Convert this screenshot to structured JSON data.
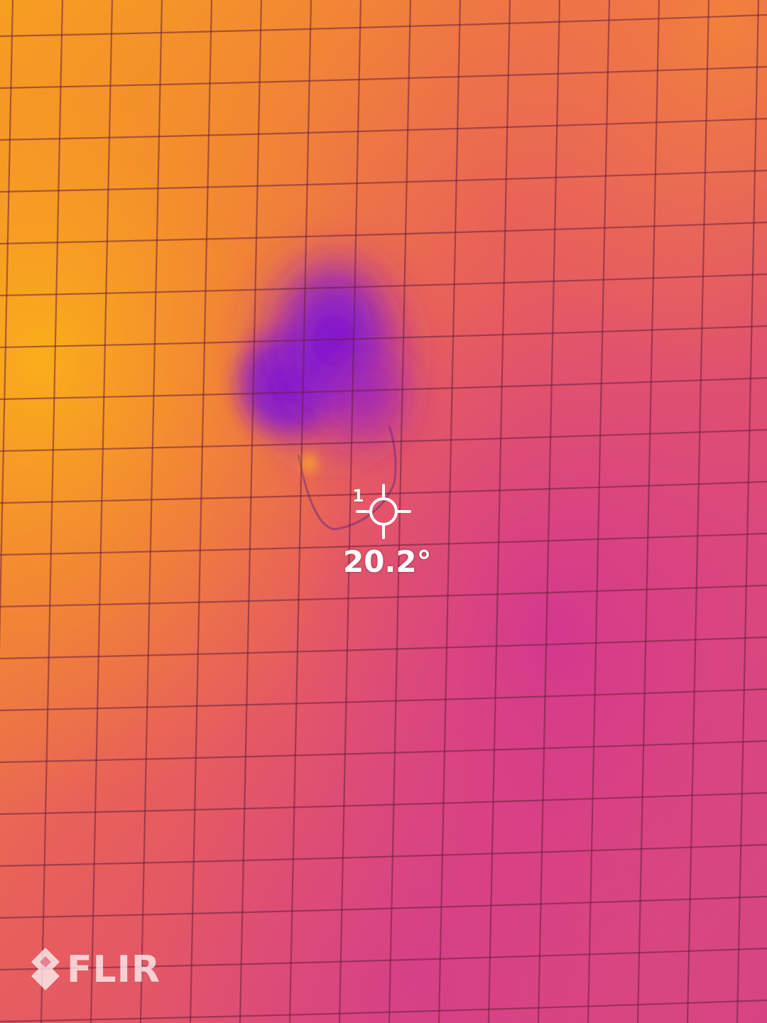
{
  "measurement": {
    "spot_index": "1",
    "temperature": "20.2°"
  },
  "brand": {
    "logo_text": "FLIR"
  },
  "palette": {
    "warm": "#f7a21a",
    "mid": "#ef6d48",
    "base": "#e04a6a",
    "cool": "#d63b8e",
    "cold": "#7d1bd1"
  },
  "icons": {
    "crosshair": "spot-meter-crosshair-icon",
    "logo": "flir-logo-icon"
  }
}
